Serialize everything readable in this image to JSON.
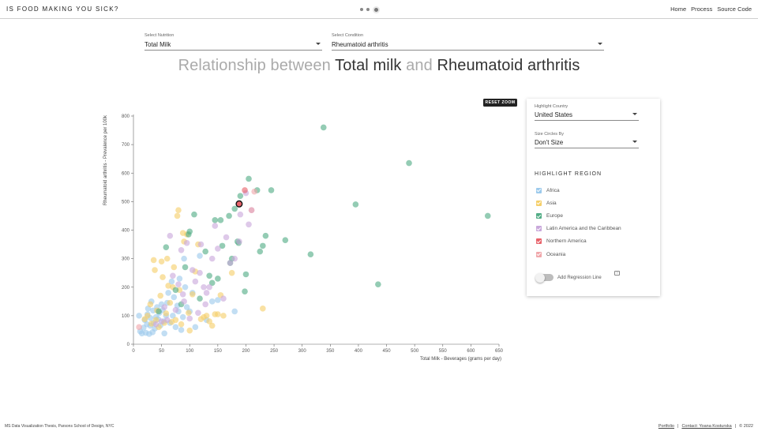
{
  "header": {
    "brand": "IS FOOD MAKING YOU SICK?",
    "nav": [
      "Home",
      "Process",
      "Source Code"
    ]
  },
  "selectors": {
    "nutrition": {
      "label": "Select Nutrition",
      "value": "Total Milk"
    },
    "condition": {
      "label": "Select Condition",
      "value": "Rheumatoid arthritis"
    }
  },
  "title": {
    "prefix": "Relationship between ",
    "nutrient": "Total milk",
    "joiner": " and ",
    "condition": "Rheumatoid arthritis"
  },
  "reset_zoom": "RESET ZOOM",
  "panel": {
    "highlight_country": {
      "label": "Highlight Country",
      "value": "United States"
    },
    "size_circles": {
      "label": "Size Circles By",
      "value": "Don't Size"
    },
    "region_title": "HIGHLIGHT REGION",
    "regions": [
      {
        "name": "Africa",
        "color": "#9ccaec"
      },
      {
        "name": "Asia",
        "color": "#f5cf6a"
      },
      {
        "name": "Europe",
        "color": "#53ad86"
      },
      {
        "name": "Latin America and the Caribbean",
        "color": "#c9a8db"
      },
      {
        "name": "Northern America",
        "color": "#e8636b"
      },
      {
        "name": "Oceania",
        "color": "#f0a7ab"
      }
    ],
    "regression_label": "Add Regression Line",
    "regression_on": false,
    "help": "?"
  },
  "chart_data": {
    "type": "scatter",
    "xlabel": "Total Milk - Beverages (grams per day)",
    "ylabel": "Rheumatoid arthritis - Prevalence per 100k",
    "xlim": [
      0,
      650
    ],
    "ylim": [
      0,
      800
    ],
    "xticks": [
      0,
      50,
      100,
      150,
      200,
      250,
      300,
      350,
      400,
      450,
      500,
      550,
      600,
      650
    ],
    "yticks": [
      0,
      100,
      200,
      300,
      400,
      500,
      600,
      700,
      800
    ],
    "highlighted": {
      "region": "Northern America",
      "x": 188,
      "y": 492
    },
    "series": [
      {
        "name": "Africa",
        "color": "#9ccaec",
        "points": [
          [
            10,
            100
          ],
          [
            12,
            45
          ],
          [
            15,
            38
          ],
          [
            18,
            58
          ],
          [
            20,
            85
          ],
          [
            22,
            40
          ],
          [
            24,
            70
          ],
          [
            25,
            105
          ],
          [
            26,
            125
          ],
          [
            28,
            36
          ],
          [
            30,
            92
          ],
          [
            30,
            65
          ],
          [
            32,
            150
          ],
          [
            34,
            42
          ],
          [
            35,
            118
          ],
          [
            36,
            75
          ],
          [
            38,
            55
          ],
          [
            40,
            95
          ],
          [
            42,
            130
          ],
          [
            44,
            88
          ],
          [
            46,
            110
          ],
          [
            48,
            66
          ],
          [
            50,
            140
          ],
          [
            52,
            120
          ],
          [
            54,
            80
          ],
          [
            55,
            38
          ],
          [
            58,
            100
          ],
          [
            60,
            145
          ],
          [
            62,
            180
          ],
          [
            65,
            75
          ],
          [
            68,
            220
          ],
          [
            70,
            100
          ],
          [
            72,
            165
          ],
          [
            75,
            60
          ],
          [
            78,
            135
          ],
          [
            80,
            115
          ],
          [
            82,
            230
          ],
          [
            85,
            50
          ],
          [
            88,
            95
          ],
          [
            90,
            300
          ],
          [
            92,
            200
          ],
          [
            95,
            130
          ],
          [
            100,
            115
          ],
          [
            105,
            180
          ],
          [
            110,
            60
          ],
          [
            118,
            310
          ],
          [
            130,
            85
          ],
          [
            140,
            150
          ],
          [
            150,
            155
          ],
          [
            180,
            115
          ]
        ]
      },
      {
        "name": "Asia",
        "color": "#f5cf6a",
        "points": [
          [
            20,
            88
          ],
          [
            25,
            100
          ],
          [
            30,
            140
          ],
          [
            32,
            72
          ],
          [
            36,
            295
          ],
          [
            38,
            260
          ],
          [
            40,
            85
          ],
          [
            42,
            118
          ],
          [
            45,
            60
          ],
          [
            48,
            170
          ],
          [
            50,
            290
          ],
          [
            52,
            235
          ],
          [
            55,
            75
          ],
          [
            58,
            108
          ],
          [
            60,
            300
          ],
          [
            62,
            205
          ],
          [
            65,
            145
          ],
          [
            68,
            78
          ],
          [
            70,
            200
          ],
          [
            72,
            270
          ],
          [
            75,
            85
          ],
          [
            78,
            450
          ],
          [
            80,
            470
          ],
          [
            82,
            190
          ],
          [
            85,
            70
          ],
          [
            88,
            390
          ],
          [
            90,
            360
          ],
          [
            95,
            385
          ],
          [
            98,
            110
          ],
          [
            100,
            48
          ],
          [
            105,
            175
          ],
          [
            110,
            255
          ],
          [
            115,
            350
          ],
          [
            120,
            88
          ],
          [
            125,
            95
          ],
          [
            130,
            100
          ],
          [
            135,
            80
          ],
          [
            140,
            65
          ],
          [
            145,
            105
          ],
          [
            150,
            105
          ],
          [
            155,
            172
          ],
          [
            160,
            100
          ],
          [
            175,
            250
          ],
          [
            230,
            125
          ]
        ]
      },
      {
        "name": "Europe",
        "color": "#53ad86",
        "points": [
          [
            45,
            115
          ],
          [
            58,
            340
          ],
          [
            75,
            190
          ],
          [
            85,
            140
          ],
          [
            92,
            270
          ],
          [
            98,
            385
          ],
          [
            100,
            395
          ],
          [
            108,
            455
          ],
          [
            118,
            160
          ],
          [
            128,
            325
          ],
          [
            135,
            240
          ],
          [
            140,
            215
          ],
          [
            145,
            435
          ],
          [
            150,
            230
          ],
          [
            155,
            435
          ],
          [
            158,
            345
          ],
          [
            170,
            450
          ],
          [
            172,
            285
          ],
          [
            175,
            300
          ],
          [
            180,
            475
          ],
          [
            185,
            360
          ],
          [
            187,
            355
          ],
          [
            190,
            520
          ],
          [
            198,
            185
          ],
          [
            200,
            245
          ],
          [
            205,
            580
          ],
          [
            220,
            540
          ],
          [
            225,
            325
          ],
          [
            230,
            345
          ],
          [
            235,
            380
          ],
          [
            245,
            540
          ],
          [
            270,
            365
          ],
          [
            315,
            315
          ],
          [
            338,
            760
          ],
          [
            395,
            490
          ],
          [
            435,
            210
          ],
          [
            490,
            635
          ],
          [
            630,
            450
          ]
        ]
      },
      {
        "name": "Latin America and the Caribbean",
        "color": "#c9a8db",
        "points": [
          [
            40,
            70
          ],
          [
            50,
            80
          ],
          [
            55,
            130
          ],
          [
            60,
            85
          ],
          [
            65,
            380
          ],
          [
            70,
            240
          ],
          [
            75,
            120
          ],
          [
            80,
            210
          ],
          [
            85,
            330
          ],
          [
            88,
            175
          ],
          [
            90,
            150
          ],
          [
            95,
            355
          ],
          [
            100,
            90
          ],
          [
            105,
            260
          ],
          [
            110,
            220
          ],
          [
            115,
            110
          ],
          [
            118,
            250
          ],
          [
            120,
            350
          ],
          [
            125,
            200
          ],
          [
            128,
            140
          ],
          [
            130,
            180
          ],
          [
            135,
            200
          ],
          [
            140,
            300
          ],
          [
            145,
            415
          ],
          [
            150,
            335
          ],
          [
            160,
            160
          ],
          [
            165,
            375
          ],
          [
            172,
            285
          ],
          [
            180,
            300
          ],
          [
            188,
            360
          ],
          [
            190,
            455
          ],
          [
            200,
            530
          ],
          [
            205,
            420
          ],
          [
            210,
            470
          ]
        ]
      },
      {
        "name": "Northern America",
        "color": "#e8636b",
        "points": [
          [
            188,
            492
          ],
          [
            198,
            540
          ]
        ]
      },
      {
        "name": "Oceania",
        "color": "#f0a7ab",
        "points": [
          [
            10,
            60
          ],
          [
            210,
            470
          ],
          [
            215,
            535
          ]
        ]
      }
    ]
  },
  "footer": {
    "left": "MS Data Visualization Thesis, Parsons School of Design, NYC",
    "links": [
      "Portfolio",
      "Contact: Yoana Kosturska"
    ],
    "separator": "|",
    "copyright": "© 2022"
  }
}
